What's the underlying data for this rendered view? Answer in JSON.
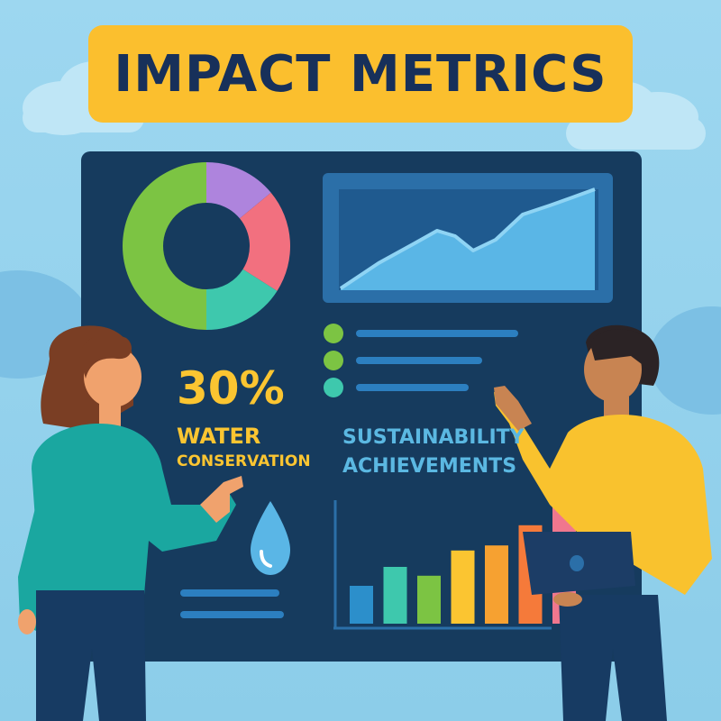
{
  "title": "IMPACT METRICS",
  "stat": {
    "value": "30%",
    "label_line1": "WATER",
    "label_line2": "CONSERVATION"
  },
  "achievements": {
    "line1": "SUSTAINABILITY",
    "line2": "ACHIEVEMENTS"
  },
  "donut": {
    "segments": [
      {
        "color": "#7cc443",
        "share": 0.5
      },
      {
        "color": "#ae84dd",
        "share": 0.14
      },
      {
        "color": "#f2707f",
        "share": 0.2
      },
      {
        "color": "#3ec8ad",
        "share": 0.16
      }
    ]
  },
  "bars": {
    "values": [
      3,
      4.5,
      3.8,
      5.8,
      6.2,
      7.8,
      9.6
    ],
    "colors": [
      "#2c8fcb",
      "#3ec8ad",
      "#7cc443",
      "#fbc531",
      "#f6a131",
      "#f57a3a",
      "#f0778e"
    ]
  },
  "legend_dots": [
    "#7cc443",
    "#7cc443",
    "#3ec8ad"
  ],
  "colors": {
    "board": "#163b5e",
    "banner": "#fbbf2e",
    "sky": "#8ccde9"
  }
}
